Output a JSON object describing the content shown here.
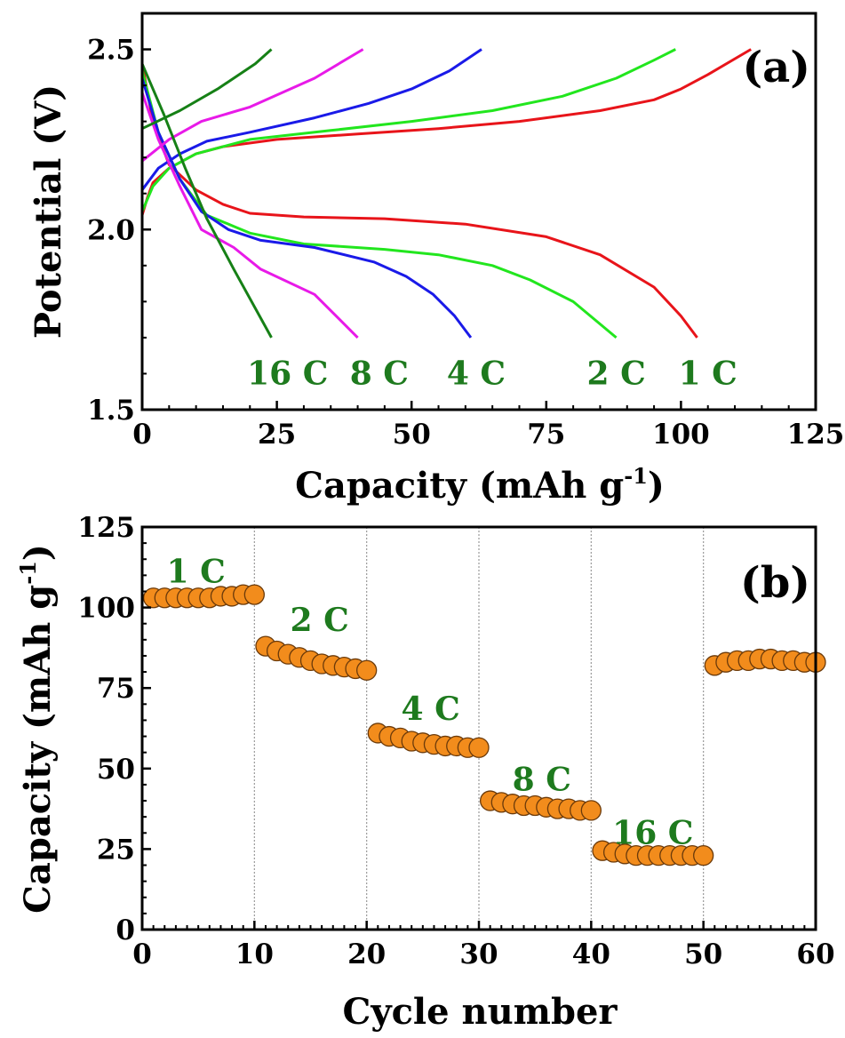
{
  "colors": {
    "axis": "#000000",
    "rate_label": "#1e7a1e",
    "marker_fill": "#f28c1c",
    "marker_edge": "#6b3a0a",
    "cycle_divider": "#999999"
  },
  "chart_data": [
    {
      "type": "line",
      "panel_label": "(a)",
      "xlabel": "Capacity (mAh g",
      "xlabel_sup": "-1",
      "xlabel_end": ")",
      "ylabel": "Potential (V)",
      "xlim": [
        0,
        125
      ],
      "ylim": [
        1.5,
        2.6
      ],
      "xticks": [
        0,
        25,
        50,
        75,
        100,
        125
      ],
      "xtick_labels": [
        "0",
        "25",
        "50",
        "75",
        "100",
        "125"
      ],
      "yticks": [
        1.5,
        2.0,
        2.5
      ],
      "ytick_labels": [
        "1.5",
        "2.0",
        "2.5"
      ],
      "series": [
        {
          "color": "#e8141a",
          "charge": [
            [
              0,
              2.04
            ],
            [
              1,
              2.09
            ],
            [
              2,
              2.13
            ],
            [
              5,
              2.17
            ],
            [
              10,
              2.21
            ],
            [
              15,
              2.23
            ],
            [
              25,
              2.25
            ],
            [
              40,
              2.265
            ],
            [
              55,
              2.28
            ],
            [
              70,
              2.3
            ],
            [
              85,
              2.33
            ],
            [
              95,
              2.36
            ],
            [
              100,
              2.39
            ],
            [
              105,
              2.43
            ],
            [
              113,
              2.5
            ]
          ],
          "discharge": [
            [
              0,
              2.46
            ],
            [
              2,
              2.3
            ],
            [
              5,
              2.18
            ],
            [
              10,
              2.11
            ],
            [
              15,
              2.07
            ],
            [
              20,
              2.045
            ],
            [
              30,
              2.035
            ],
            [
              45,
              2.03
            ],
            [
              60,
              2.015
            ],
            [
              75,
              1.98
            ],
            [
              85,
              1.93
            ],
            [
              95,
              1.84
            ],
            [
              100,
              1.76
            ],
            [
              103,
              1.7
            ]
          ]
        },
        {
          "color": "#22e61e",
          "charge": [
            [
              0,
              2.05
            ],
            [
              2,
              2.12
            ],
            [
              5,
              2.17
            ],
            [
              10,
              2.21
            ],
            [
              20,
              2.25
            ],
            [
              35,
              2.275
            ],
            [
              50,
              2.3
            ],
            [
              65,
              2.33
            ],
            [
              78,
              2.37
            ],
            [
              88,
              2.42
            ],
            [
              95,
              2.47
            ],
            [
              99,
              2.5
            ]
          ],
          "discharge": [
            [
              0,
              2.44
            ],
            [
              3,
              2.27
            ],
            [
              7,
              2.14
            ],
            [
              12,
              2.04
            ],
            [
              20,
              1.99
            ],
            [
              30,
              1.96
            ],
            [
              45,
              1.945
            ],
            [
              55,
              1.93
            ],
            [
              65,
              1.9
            ],
            [
              72,
              1.86
            ],
            [
              80,
              1.8
            ],
            [
              88,
              1.7
            ]
          ]
        },
        {
          "color": "#1a1ae8",
          "charge": [
            [
              0,
              2.11
            ],
            [
              3,
              2.17
            ],
            [
              7,
              2.21
            ],
            [
              12,
              2.245
            ],
            [
              20,
              2.27
            ],
            [
              32,
              2.31
            ],
            [
              42,
              2.35
            ],
            [
              50,
              2.39
            ],
            [
              57,
              2.44
            ],
            [
              63,
              2.5
            ]
          ],
          "discharge": [
            [
              0,
              2.42
            ],
            [
              3,
              2.27
            ],
            [
              7,
              2.14
            ],
            [
              11,
              2.05
            ],
            [
              16,
              2.0
            ],
            [
              22,
              1.97
            ],
            [
              32,
              1.95
            ],
            [
              43,
              1.91
            ],
            [
              49,
              1.87
            ],
            [
              54,
              1.82
            ],
            [
              58,
              1.76
            ],
            [
              61,
              1.7
            ]
          ]
        },
        {
          "color": "#e81ae8",
          "charge": [
            [
              0,
              2.19
            ],
            [
              5,
              2.25
            ],
            [
              11,
              2.3
            ],
            [
              20,
              2.34
            ],
            [
              32,
              2.42
            ],
            [
              41,
              2.5
            ]
          ],
          "discharge": [
            [
              0,
              2.38
            ],
            [
              3,
              2.25
            ],
            [
              7,
              2.12
            ],
            [
              11,
              2.0
            ],
            [
              17,
              1.95
            ],
            [
              22,
              1.89
            ],
            [
              32,
              1.82
            ],
            [
              40,
              1.7
            ]
          ]
        },
        {
          "color": "#168016",
          "charge": [
            [
              0,
              2.28
            ],
            [
              7,
              2.33
            ],
            [
              14,
              2.39
            ],
            [
              21,
              2.46
            ],
            [
              24,
              2.5
            ]
          ],
          "discharge": [
            [
              0,
              2.46
            ],
            [
              4,
              2.32
            ],
            [
              8,
              2.17
            ],
            [
              12,
              2.03
            ],
            [
              17,
              1.89
            ],
            [
              24,
              1.7
            ]
          ]
        }
      ],
      "rate_labels": [
        {
          "text": "16 C",
          "x": 27,
          "y": 1.6
        },
        {
          "text": "8 C",
          "x": 44,
          "y": 1.6
        },
        {
          "text": "4 C",
          "x": 62,
          "y": 1.6
        },
        {
          "text": "2 C",
          "x": 88,
          "y": 1.6
        },
        {
          "text": "1 C",
          "x": 105,
          "y": 1.6
        }
      ]
    },
    {
      "type": "scatter",
      "panel_label": "(b)",
      "xlabel": "Cycle number",
      "ylabel": "Capacity (mAh g",
      "ylabel_sup": "-1",
      "ylabel_end": ")",
      "xlim": [
        0,
        60
      ],
      "ylim": [
        0,
        125
      ],
      "xticks": [
        0,
        10,
        20,
        30,
        40,
        50,
        60
      ],
      "xtick_labels": [
        "0",
        "10",
        "20",
        "30",
        "40",
        "50",
        "60"
      ],
      "yticks": [
        0,
        25,
        50,
        75,
        100,
        125
      ],
      "ytick_labels": [
        "0",
        "25",
        "50",
        "75",
        "100",
        "125"
      ],
      "cycle_dividers": [
        10,
        20,
        30,
        40,
        50
      ],
      "x": [
        1,
        2,
        3,
        4,
        5,
        6,
        7,
        8,
        9,
        10,
        11,
        12,
        13,
        14,
        15,
        16,
        17,
        18,
        19,
        20,
        21,
        22,
        23,
        24,
        25,
        26,
        27,
        28,
        29,
        30,
        31,
        32,
        33,
        34,
        35,
        36,
        37,
        38,
        39,
        40,
        41,
        42,
        43,
        44,
        45,
        46,
        47,
        48,
        49,
        50,
        51,
        52,
        53,
        54,
        55,
        56,
        57,
        58,
        59,
        60
      ],
      "y": [
        103,
        103,
        103,
        103,
        103,
        103,
        103.5,
        103.5,
        104,
        104,
        88,
        86.5,
        85.5,
        84.5,
        83.5,
        82.5,
        82,
        81.5,
        81,
        80.5,
        61,
        60,
        59.5,
        58.5,
        58,
        57.5,
        57,
        57,
        56.5,
        56.5,
        40,
        39.5,
        39,
        38.5,
        38.5,
        38,
        37.5,
        37.5,
        37,
        37,
        24.5,
        24,
        23.5,
        23,
        23,
        23,
        23,
        23,
        23,
        23,
        82,
        83,
        83.5,
        83.5,
        84,
        84,
        83.5,
        83.5,
        83,
        83
      ],
      "rate_labels": [
        {
          "text": "1 C",
          "x": 4.8,
          "y": 111
        },
        {
          "text": "2 C",
          "x": 15.8,
          "y": 96
        },
        {
          "text": "4 C",
          "x": 25.7,
          "y": 68.5
        },
        {
          "text": "8 C",
          "x": 35.6,
          "y": 46.5
        },
        {
          "text": "16 C",
          "x": 45.5,
          "y": 30
        }
      ]
    }
  ]
}
